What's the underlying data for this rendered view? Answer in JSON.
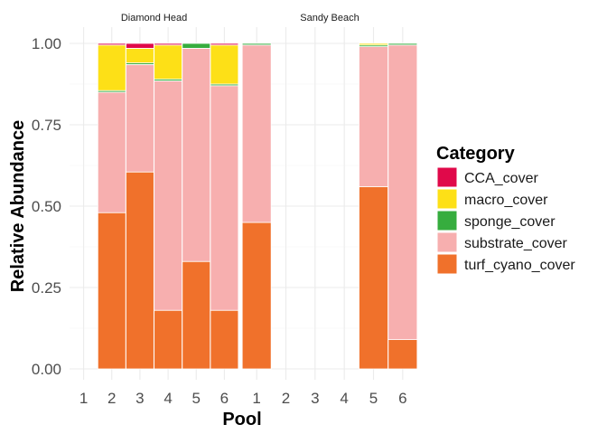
{
  "chart_data": {
    "type": "bar",
    "stacked": true,
    "xlabel": "Pool",
    "ylabel": "Relative Abundance",
    "ylim": [
      0,
      1
    ],
    "yticks": [
      "0.00",
      "0.25",
      "0.50",
      "0.75",
      "1.00"
    ],
    "grid": true,
    "legend": {
      "title": "Category",
      "position": "right",
      "entries": [
        "CCA_cover",
        "macro_cover",
        "sponge_cover",
        "substrate_cover",
        "turf_cyano_cover"
      ]
    },
    "colors": {
      "CCA_cover": "#E0094A",
      "macro_cover": "#FDE017",
      "sponge_cover": "#36AD3E",
      "substrate_cover": "#F7AFAF",
      "turf_cyano_cover": "#F0712B"
    },
    "stack_order": [
      "turf_cyano_cover",
      "substrate_cover",
      "sponge_cover",
      "macro_cover",
      "CCA_cover"
    ],
    "facets": [
      {
        "title": "Diamond Head",
        "categories": [
          "1",
          "2",
          "3",
          "4",
          "5",
          "6"
        ],
        "series": [
          {
            "name": "turf_cyano_cover",
            "values": [
              null,
              0.48,
              0.605,
              0.18,
              0.33,
              0.18
            ]
          },
          {
            "name": "substrate_cover",
            "values": [
              null,
              0.37,
              0.33,
              0.705,
              0.655,
              0.69
            ]
          },
          {
            "name": "sponge_cover",
            "values": [
              null,
              0.005,
              0.005,
              0.005,
              0.015,
              0.005
            ]
          },
          {
            "name": "macro_cover",
            "values": [
              null,
              0.14,
              0.045,
              0.105,
              0.0,
              0.12
            ]
          },
          {
            "name": "CCA_cover",
            "values": [
              null,
              0.005,
              0.015,
              0.005,
              0.0,
              0.005
            ]
          }
        ]
      },
      {
        "title": "Sandy Beach",
        "categories": [
          "1",
          "2",
          "3",
          "4",
          "5",
          "6"
        ],
        "series": [
          {
            "name": "turf_cyano_cover",
            "values": [
              0.45,
              null,
              null,
              null,
              0.56,
              0.09
            ]
          },
          {
            "name": "substrate_cover",
            "values": [
              0.545,
              null,
              null,
              null,
              0.43,
              0.905
            ]
          },
          {
            "name": "sponge_cover",
            "values": [
              0.005,
              null,
              null,
              null,
              0.005,
              0.005
            ]
          },
          {
            "name": "macro_cover",
            "values": [
              0.0,
              null,
              null,
              null,
              0.005,
              0.0
            ]
          },
          {
            "name": "CCA_cover",
            "values": [
              0.0,
              null,
              null,
              null,
              0.0,
              0.0
            ]
          }
        ]
      }
    ]
  }
}
